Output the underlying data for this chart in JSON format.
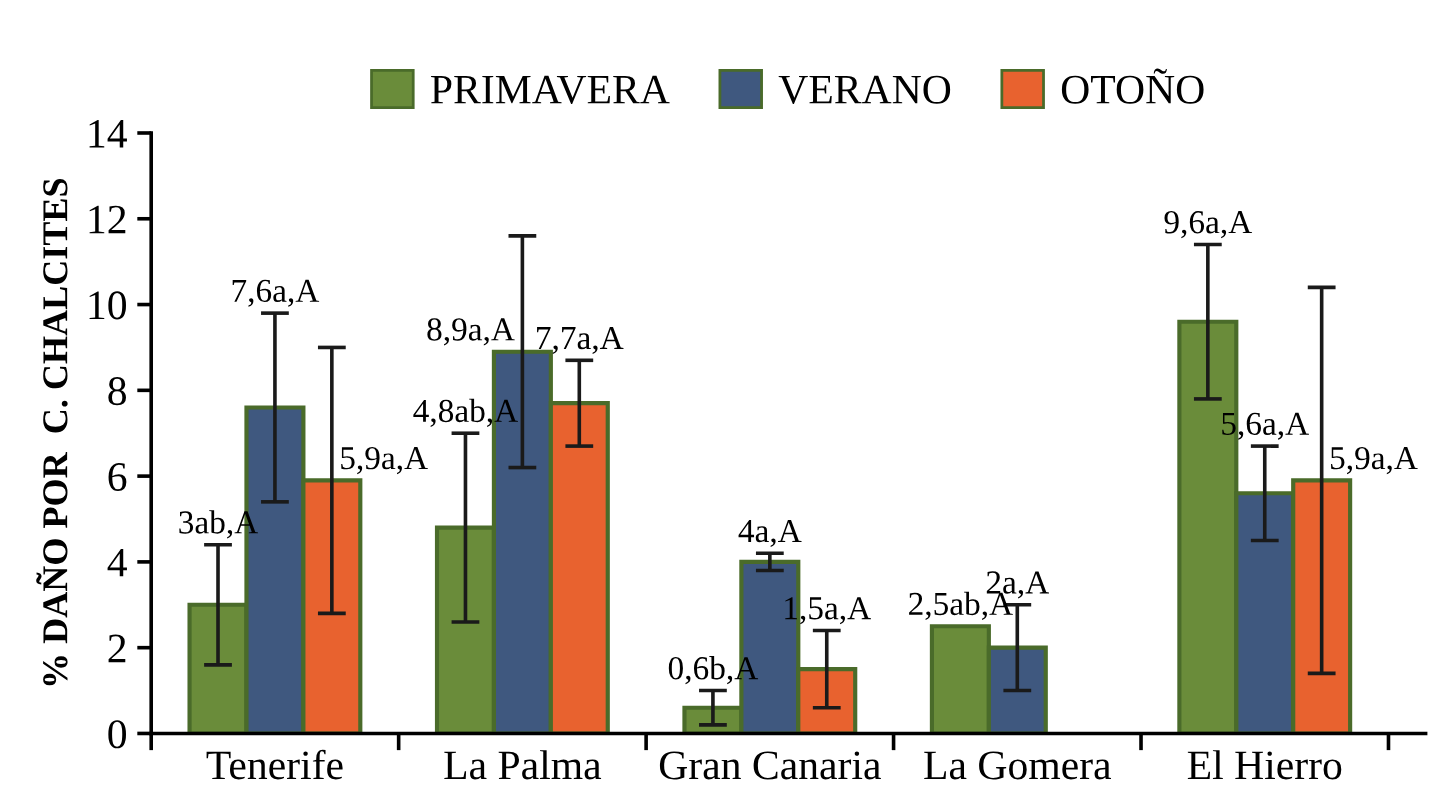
{
  "chart_data": {
    "type": "bar",
    "ylabel": "% DAÑO POR  C. CHALCITES",
    "categories": [
      "Tenerife",
      "La Palma",
      "Gran Canaria",
      "La Gomera",
      "El Hierro"
    ],
    "series": [
      {
        "name": "PRIMAVERA",
        "color": "#6a8c3a",
        "values": [
          3,
          4.8,
          0.6,
          2.5,
          9.6
        ],
        "errors": [
          1.4,
          2.2,
          0.4,
          null,
          1.8
        ],
        "value_labels": [
          "3ab,A",
          "4,8ab,A",
          "0,6b,A",
          "2,5ab,A",
          "9,6a,A"
        ]
      },
      {
        "name": "VERANO",
        "color": "#3f587f",
        "values": [
          7.6,
          8.9,
          4,
          2,
          5.6
        ],
        "errors": [
          2.2,
          2.7,
          0.2,
          1,
          1.1
        ],
        "value_labels": [
          "7,6a,A",
          "8,9a,A",
          "4a,A",
          "2a,A",
          "5,6a,A"
        ]
      },
      {
        "name": "OTOÑO",
        "color": "#e8622f",
        "values": [
          5.9,
          7.7,
          1.5,
          null,
          5.9
        ],
        "errors": [
          3.1,
          1.0,
          0.9,
          null,
          4.5
        ],
        "value_labels": [
          "5,9a,A",
          "7,7a,A",
          "1,5a,A",
          null,
          "5,9a,A"
        ]
      }
    ],
    "ylim": [
      0,
      14
    ],
    "yticks": [
      0,
      2,
      4,
      6,
      8,
      10,
      12,
      14
    ],
    "grid": false,
    "legend": "top"
  }
}
